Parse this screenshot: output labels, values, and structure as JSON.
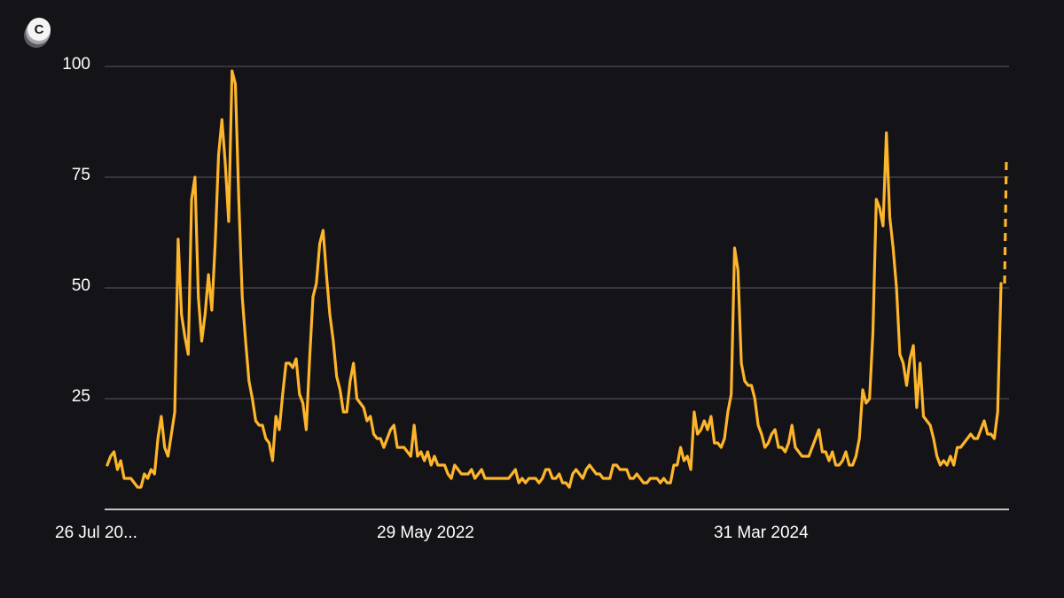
{
  "brand": {
    "logo_icon": "brand-logo-icon",
    "logo_letter": "C"
  },
  "colors": {
    "background": "#141317",
    "line": "#FDB52B",
    "grid": "#5a5960",
    "axis": "#ffffff",
    "text": "#ffffff"
  },
  "chart_data": {
    "type": "line",
    "title": "",
    "xlabel": "",
    "ylabel": "",
    "ylim": [
      0,
      100
    ],
    "yticks": [
      25,
      50,
      75,
      100
    ],
    "x_tick_labels": [
      "26 Jul 20...",
      "29 May 2022",
      "31 Mar 2024"
    ],
    "grid": true,
    "series": [
      {
        "values": [
          10,
          12,
          13,
          9,
          11,
          7,
          7,
          7,
          6,
          5,
          5,
          8,
          7,
          9,
          8,
          16,
          21,
          14,
          12,
          17,
          22,
          61,
          44,
          39,
          35,
          70,
          75,
          48,
          38,
          44,
          53,
          45,
          60,
          80,
          88,
          78,
          65,
          99,
          96,
          70,
          48,
          38,
          29,
          25,
          20,
          19,
          19,
          16,
          15,
          11,
          21,
          18,
          26,
          33,
          33,
          32,
          34,
          26,
          24,
          18,
          34,
          48,
          51,
          60,
          63,
          53,
          44,
          38,
          30,
          27,
          22,
          22,
          29,
          33,
          25,
          24,
          23,
          20,
          21,
          17,
          16,
          16,
          14,
          16,
          18,
          19,
          14,
          14,
          14,
          13,
          12,
          19,
          12,
          13,
          11,
          13,
          10,
          12,
          10,
          10,
          10,
          8,
          7,
          10,
          9,
          8,
          8,
          8,
          9,
          7,
          8,
          9,
          7,
          7,
          7,
          7,
          7,
          7,
          7,
          7,
          8,
          9,
          6,
          7,
          6,
          7,
          7,
          7,
          6,
          7,
          9,
          9,
          7,
          7,
          8,
          6,
          6,
          5,
          8,
          9,
          8,
          7,
          9,
          10,
          9,
          8,
          8,
          7,
          7,
          7,
          10,
          10,
          9,
          9,
          9,
          7,
          7,
          8,
          7,
          6,
          6,
          7,
          7,
          7,
          6,
          7,
          6,
          6,
          10,
          10,
          14,
          11,
          12,
          9,
          22,
          17,
          18,
          20,
          18,
          21,
          15,
          15,
          14,
          16,
          22,
          26,
          59,
          54,
          33,
          29,
          28,
          28,
          25,
          19,
          17,
          14,
          15,
          17,
          18,
          14,
          14,
          13,
          15,
          19,
          14,
          13,
          12,
          12,
          12,
          14,
          16,
          18,
          13,
          13,
          11,
          13,
          10,
          10,
          11,
          13,
          10,
          10,
          12,
          16,
          27,
          24,
          25,
          40,
          70,
          68,
          64,
          85,
          66,
          59,
          50,
          35,
          33,
          28,
          34,
          37,
          23,
          33,
          21,
          20,
          19,
          16,
          12,
          10,
          11,
          10,
          12,
          10,
          14,
          14,
          15,
          16,
          17,
          16,
          16,
          18,
          20,
          17,
          17,
          16,
          22,
          51
        ],
        "projection": [
          51,
          79
        ]
      }
    ]
  }
}
